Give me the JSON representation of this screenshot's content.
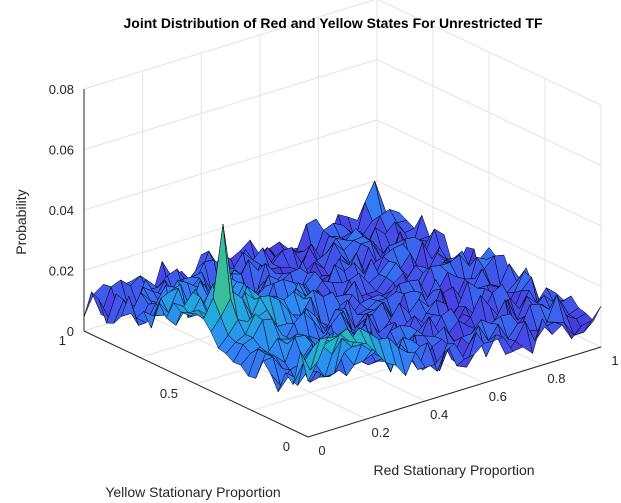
{
  "chart_data": {
    "type": "surface",
    "title": "Joint Distribution of Red and Yellow States For Unrestricted TF",
    "xlabel": "Red Stationary Proportion",
    "ylabel": "Yellow Stationary Proportion",
    "zlabel": "Probability",
    "xlim": [
      0,
      1
    ],
    "ylim": [
      0,
      1
    ],
    "zlim": [
      0,
      0.08
    ],
    "x_ticks": [
      0,
      0.2,
      0.4,
      0.6,
      0.8,
      1
    ],
    "x_tick_labels": [
      "0",
      "0.2",
      "0.4",
      "0.6",
      "0.8",
      "1"
    ],
    "y_ticks": [
      0,
      0.5,
      1
    ],
    "y_tick_labels": [
      "0",
      "0.5",
      "1"
    ],
    "z_ticks": [
      0,
      0.02,
      0.04,
      0.06,
      0.08
    ],
    "z_tick_labels": [
      "0",
      "0.02",
      "0.04",
      "0.06",
      "0.08"
    ],
    "grid": true,
    "colormap": [
      "#3e26a8",
      "#4744e8",
      "#2e87f7",
      "#20b2d4",
      "#3abd9c",
      "#a4be3c",
      "#f5e11f"
    ],
    "edge_color": "#000000",
    "peaks": [
      {
        "x": 0.05,
        "y": 0.45,
        "z": 0.052,
        "label": ""
      },
      {
        "x": 0.12,
        "y": 0.05,
        "z": 0.021,
        "label": ""
      },
      {
        "x": 0.95,
        "y": 0.95,
        "z": 0.022,
        "label": ""
      },
      {
        "x": 0.9,
        "y": 0.05,
        "z": 0.018,
        "label": ""
      }
    ],
    "ridge_near_x0_y0": 0.025,
    "background_level": [
      0.004,
      0.016
    ]
  }
}
